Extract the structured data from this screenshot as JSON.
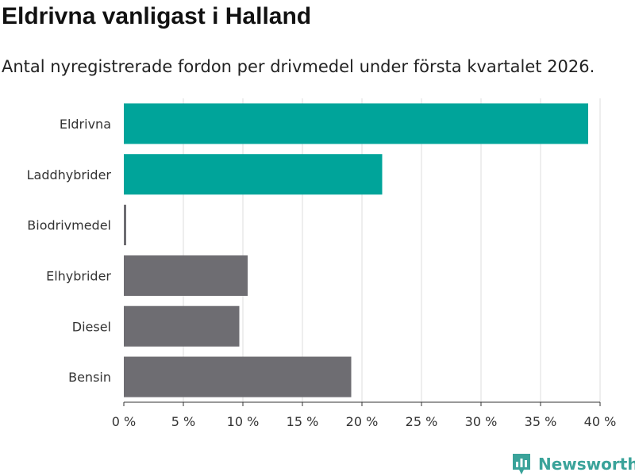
{
  "chart_data": {
    "type": "bar",
    "orientation": "horizontal",
    "title": "Eldrivna vanligast i Halland",
    "subtitle": "Antal nyregistrerade fordon per drivmedel under första kvartalet 2026.",
    "categories": [
      "Eldrivna",
      "Laddhybrider",
      "Biodrivmedel",
      "Elhybrider",
      "Diesel",
      "Bensin"
    ],
    "values": [
      39.0,
      21.7,
      0.2,
      10.4,
      9.7,
      19.1
    ],
    "value_unit": "%",
    "xlim": [
      0,
      40
    ],
    "xticks": [
      "0 %",
      "5 %",
      "10 %",
      "15 %",
      "20 %",
      "25 %",
      "30 %",
      "35 %",
      "40 %"
    ],
    "grid": true,
    "colors": {
      "highlight": "#00a49a",
      "default": "#6e6d72"
    },
    "highlighted": [
      "Eldrivna",
      "Laddhybrider"
    ]
  },
  "brand": {
    "name": "Newsworthy",
    "icon": "bar-chart-logo-icon",
    "color": "#3aa39a"
  }
}
